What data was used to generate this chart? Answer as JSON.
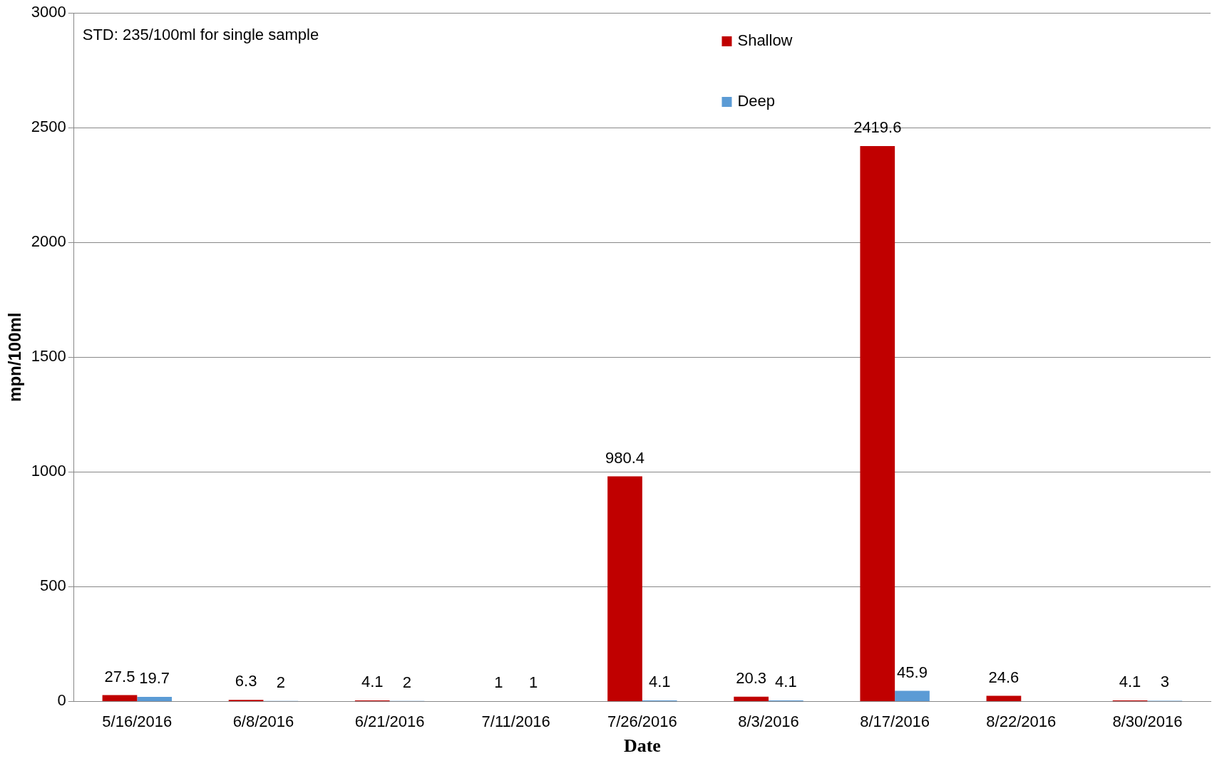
{
  "chart_data": {
    "type": "bar",
    "xlabel": "Date",
    "ylabel": "mpn/100ml",
    "categories": [
      "5/16/2016",
      "6/8/2016",
      "6/21/2016",
      "7/11/2016",
      "7/26/2016",
      "8/3/2016",
      "8/17/2016",
      "8/22/2016",
      "8/30/2016"
    ],
    "series": [
      {
        "name": "Shallow",
        "color": "#c00000",
        "values": [
          27.5,
          6.3,
          4.1,
          1,
          980.4,
          20.3,
          2419.6,
          24.6,
          4.1
        ]
      },
      {
        "name": "Deep",
        "color": "#5b9bd5",
        "values": [
          19.7,
          2,
          2,
          1,
          4.1,
          4.1,
          45.9,
          null,
          3
        ]
      }
    ],
    "ylim": [
      0,
      3000
    ],
    "yticks": [
      0,
      500,
      1000,
      1500,
      2000,
      2500,
      3000
    ],
    "grid": "y",
    "legend": "top right",
    "data_labels": true,
    "annotations": [
      "STD: 235/100ml for single sample"
    ]
  }
}
